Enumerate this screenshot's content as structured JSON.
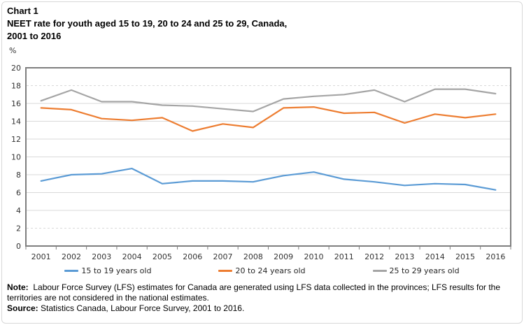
{
  "header": {
    "chart_label": "Chart 1",
    "title_line1": "NEET rate for youth aged 15 to 19, 20 to 24 and 25 to 29, Canada,",
    "title_line2": "2001 to 2016",
    "y_unit": "%"
  },
  "colors": {
    "axis": "#7f7f7f",
    "gridline": "#d9d9d9",
    "blue": "#5b9bd5",
    "orange": "#ed7d31",
    "gray": "#a5a5a5"
  },
  "chart_data": {
    "type": "line",
    "title": "NEET rate for youth aged 15 to 19, 20 to 24 and 25 to 29, Canada, 2001 to 2016",
    "xlabel": "",
    "ylabel": "%",
    "ylim": [
      0,
      20
    ],
    "ytick_step": 2,
    "dashed_gridlines": [
      2,
      18
    ],
    "grid": true,
    "legend_position": "bottom",
    "categories": [
      "2001",
      "2002",
      "2003",
      "2004",
      "2005",
      "2006",
      "2007",
      "2008",
      "2009",
      "2010",
      "2011",
      "2012",
      "2013",
      "2014",
      "2015",
      "2016"
    ],
    "series": [
      {
        "name": "15 to 19 years old",
        "color": "#5b9bd5",
        "values": [
          7.3,
          8.0,
          8.1,
          8.7,
          7.0,
          7.3,
          7.3,
          7.2,
          7.9,
          8.3,
          7.5,
          7.2,
          6.8,
          7.0,
          6.9,
          6.3
        ]
      },
      {
        "name": "20 to 24 years old",
        "color": "#ed7d31",
        "values": [
          15.5,
          15.3,
          14.3,
          14.1,
          14.4,
          12.9,
          13.7,
          13.3,
          15.5,
          15.6,
          14.9,
          15.0,
          13.8,
          14.8,
          14.4,
          14.8
        ]
      },
      {
        "name": "25 to 29 years old",
        "color": "#a5a5a5",
        "values": [
          16.3,
          17.5,
          16.2,
          16.2,
          15.8,
          15.7,
          15.4,
          15.1,
          16.5,
          16.8,
          17.0,
          17.5,
          16.2,
          17.6,
          17.6,
          17.1
        ]
      }
    ]
  },
  "footer": {
    "note_label": "Note:",
    "note_text": "Labour Force Survey (LFS) estimates for Canada are generated using LFS data collected in the provinces; LFS results for the territories are not considered in the national estimates.",
    "source_label": "Source:",
    "source_text": "Statistics Canada, Labour Force Survey, 2001 to 2016."
  }
}
